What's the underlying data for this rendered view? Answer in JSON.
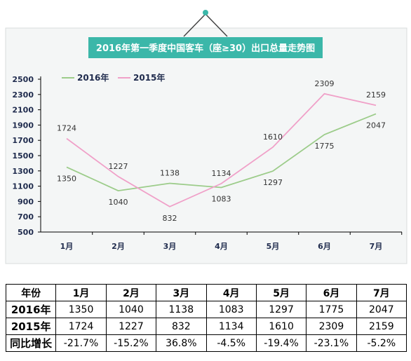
{
  "chart_data": {
    "type": "line",
    "title": "2016年第一季度中国客车（座≥30）出口总量走势图",
    "categories": [
      "1月",
      "2月",
      "3月",
      "4月",
      "5月",
      "6月",
      "7月"
    ],
    "series": [
      {
        "name": "2016年",
        "color": "#9ccc8a",
        "values": [
          1350,
          1040,
          1138,
          1083,
          1297,
          1775,
          2047
        ]
      },
      {
        "name": "2015年",
        "color": "#f0a0c8",
        "values": [
          1724,
          1227,
          832,
          1134,
          1610,
          2309,
          2159
        ]
      }
    ],
    "yticks": [
      "2500",
      "2300",
      "2100",
      "1900",
      "1700",
      "1500",
      "1300",
      "1100",
      "900",
      "700",
      "500"
    ],
    "ylim": [
      500,
      2500
    ],
    "grid": false,
    "legend": "top-left"
  },
  "table": {
    "headers": [
      "年份",
      "1月",
      "2月",
      "3月",
      "4月",
      "5月",
      "6月",
      "7月"
    ],
    "rows": [
      {
        "label": "2016年",
        "cells": [
          "1350",
          "1040",
          "1138",
          "1083",
          "1297",
          "1775",
          "2047"
        ]
      },
      {
        "label": "2015年",
        "cells": [
          "1724",
          "1227",
          "832",
          "1134",
          "1610",
          "2309",
          "2159"
        ]
      },
      {
        "label": "同比增长",
        "cells": [
          "-21.7%",
          "-15.2%",
          "36.8%",
          "-4.5%",
          "-19.4%",
          "-23.1%",
          "-5.2%"
        ]
      }
    ]
  }
}
